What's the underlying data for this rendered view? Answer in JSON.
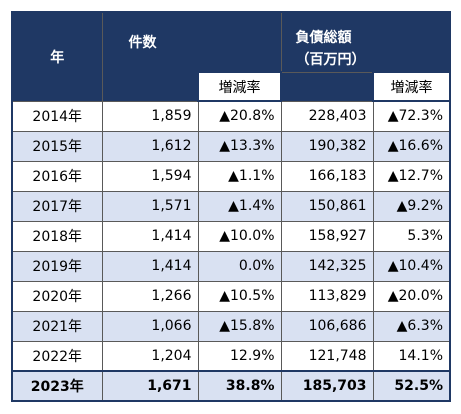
{
  "header": {
    "year": "年",
    "count": "件数",
    "debt_line1": "負債総額",
    "debt_line2": "（百万円）",
    "change_count": "増減率",
    "change_debt": "増減率"
  },
  "rows": [
    {
      "year": "2014年",
      "count": "1,859",
      "count_change": "▲20.8%",
      "debt": "228,403",
      "debt_change": "▲72.3%"
    },
    {
      "year": "2015年",
      "count": "1,612",
      "count_change": "▲13.3%",
      "debt": "190,382",
      "debt_change": "▲16.6%"
    },
    {
      "year": "2016年",
      "count": "1,594",
      "count_change": "▲1.1%",
      "debt": "166,183",
      "debt_change": "▲12.7%"
    },
    {
      "year": "2017年",
      "count": "1,571",
      "count_change": "▲1.4%",
      "debt": "150,861",
      "debt_change": "▲9.2%"
    },
    {
      "year": "2018年",
      "count": "1,414",
      "count_change": "▲10.0%",
      "debt": "158,927",
      "debt_change": "5.3%"
    },
    {
      "year": "2019年",
      "count": "1,414",
      "count_change": "0.0%",
      "debt": "142,325",
      "debt_change": "▲10.4%"
    },
    {
      "year": "2020年",
      "count": "1,266",
      "count_change": "▲10.5%",
      "debt": "113,829",
      "debt_change": "▲20.0%"
    },
    {
      "year": "2021年",
      "count": "1,066",
      "count_change": "▲15.8%",
      "debt": "106,686",
      "debt_change": "▲6.3%"
    },
    {
      "year": "2022年",
      "count": "1,204",
      "count_change": "12.9%",
      "debt": "121,748",
      "debt_change": "14.1%"
    },
    {
      "year": "2023年",
      "count": "1,671",
      "count_change": "38.8%",
      "debt": "185,703",
      "debt_change": "52.5%"
    }
  ],
  "colors": {
    "header_bg": "#1f3864",
    "row_shade": "#d9e1f2",
    "border": "#595959"
  }
}
